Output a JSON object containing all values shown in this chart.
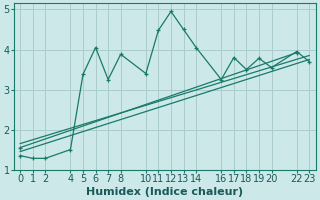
{
  "xlabel": "Humidex (Indice chaleur)",
  "bg_color": "#cce8e8",
  "grid_color": "#aacccc",
  "line_color": "#1a7a6a",
  "xlim": [
    -0.5,
    23.5
  ],
  "ylim": [
    1.0,
    5.15
  ],
  "xticks": [
    0,
    1,
    2,
    4,
    5,
    6,
    7,
    8,
    10,
    11,
    12,
    13,
    14,
    16,
    17,
    18,
    19,
    20,
    22,
    23
  ],
  "yticks": [
    1,
    2,
    3,
    4,
    5
  ],
  "series1_x": [
    0,
    1,
    2,
    4,
    5,
    6,
    7,
    8,
    10,
    11,
    12,
    13,
    14,
    16,
    17,
    18,
    19,
    20,
    22,
    23
  ],
  "series1_y": [
    1.35,
    1.28,
    1.28,
    1.5,
    3.38,
    4.05,
    3.25,
    3.88,
    3.4,
    4.48,
    4.95,
    4.5,
    4.05,
    3.25,
    3.8,
    3.5,
    3.78,
    3.55,
    3.95,
    3.7
  ],
  "line2_x": [
    0,
    22
  ],
  "line2_y": [
    1.55,
    3.92
  ],
  "line3_x": [
    0,
    23
  ],
  "line3_y": [
    1.45,
    3.75
  ],
  "line4_x": [
    0,
    23
  ],
  "line4_y": [
    1.65,
    3.85
  ],
  "tick_fontsize": 7,
  "xlabel_fontsize": 8
}
